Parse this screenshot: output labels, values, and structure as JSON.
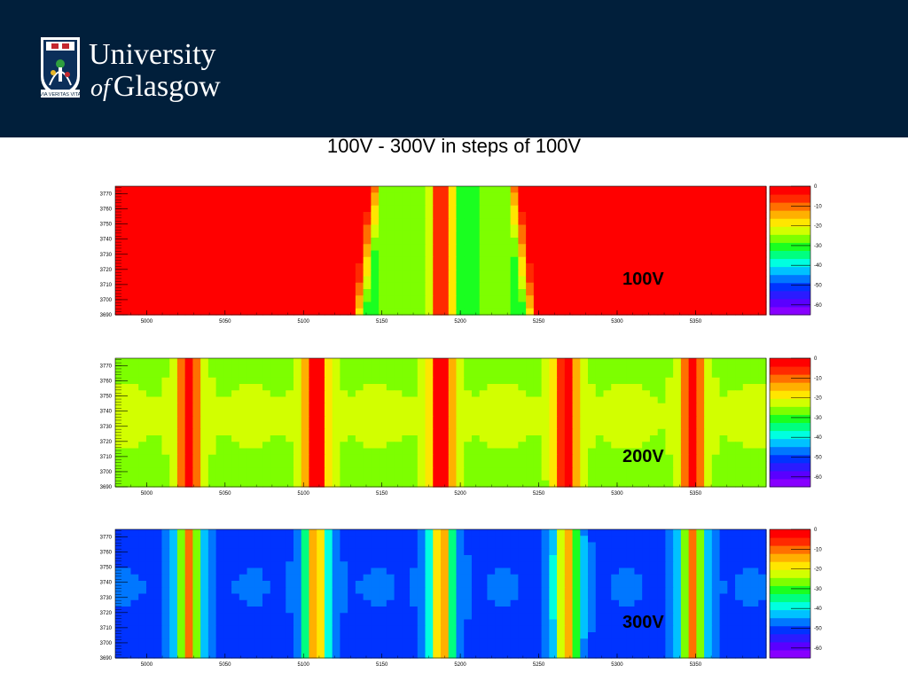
{
  "header": {
    "logo_line1": "University",
    "logo_line2_of": "of",
    "logo_line2": "Glasgow",
    "logo_motto": "VIA VERITAS VITA"
  },
  "slide": {
    "title": "100V - 300V in steps of 100V"
  },
  "colors": {
    "header_bg": "#011f3b",
    "palette": [
      "#8800ff",
      "#5a00ff",
      "#2b1bff",
      "#0033ff",
      "#0077ff",
      "#00c2ff",
      "#00ffe0",
      "#00ff80",
      "#1aff20",
      "#7dff00",
      "#d2ff00",
      "#ffe600",
      "#ffb000",
      "#ff7000",
      "#ff2a00",
      "#ff0000"
    ]
  },
  "chart_data": [
    {
      "type": "heatmap",
      "label": "100V",
      "xlim": [
        4980,
        5395
      ],
      "ylim": [
        3690,
        3775
      ],
      "xticks": [
        "5000",
        "5050",
        "5100",
        "5150",
        "5200",
        "5250",
        "5300",
        "5350"
      ],
      "yticks": [
        "3770",
        "3760",
        "3750",
        "3740",
        "3730",
        "3720",
        "3710",
        "3700",
        "3690"
      ],
      "zlim": [
        -65,
        0
      ],
      "colorbar_ticks": [
        "0",
        "-10",
        "-20",
        "-30",
        "-40",
        "-50",
        "-60"
      ],
      "background_z": -1,
      "peak_centers": [
        5143,
        5187,
        5223
      ],
      "stripe_centers": [
        5188
      ],
      "stripe_z": -2,
      "pattern": "three central green bands around x≈5150–5230 on a uniform red field; red stripe at x≈5188"
    },
    {
      "type": "heatmap",
      "label": "200V",
      "xlim": [
        4980,
        5395
      ],
      "ylim": [
        3690,
        3775
      ],
      "xticks": [
        "5000",
        "5050",
        "5100",
        "5150",
        "5200",
        "5250",
        "5300",
        "5350"
      ],
      "yticks": [
        "3770",
        "3760",
        "3750",
        "3740",
        "3730",
        "3720",
        "3710",
        "3700",
        "3690"
      ],
      "zlim": [
        -65,
        0
      ],
      "colorbar_ticks": [
        "0",
        "-10",
        "-20",
        "-30",
        "-40",
        "-50",
        "-60"
      ],
      "background_z": -27,
      "stripe_centers": [
        5027,
        5108,
        5188,
        5268,
        5348
      ],
      "stripe_z": -5,
      "pattern": "green field with periodic red/yellow vertical stripes every ~80 units"
    },
    {
      "type": "heatmap",
      "label": "300V",
      "xlim": [
        4980,
        5395
      ],
      "ylim": [
        3690,
        3775
      ],
      "xticks": [
        "5000",
        "5050",
        "5100",
        "5150",
        "5200",
        "5250",
        "5300",
        "5350"
      ],
      "yticks": [
        "3770",
        "3760",
        "3750",
        "3740",
        "3730",
        "3720",
        "3710",
        "3700",
        "3690"
      ],
      "zlim": [
        -65,
        0
      ],
      "colorbar_ticks": [
        "0",
        "-10",
        "-20",
        "-30",
        "-40",
        "-50",
        "-60"
      ],
      "background_z": -52,
      "stripe_centers": [
        5027,
        5108,
        5188,
        5268,
        5348
      ],
      "stripe_z": -22,
      "pattern": "blue field with periodic green/yellow vertical stripes every ~80 units"
    }
  ]
}
